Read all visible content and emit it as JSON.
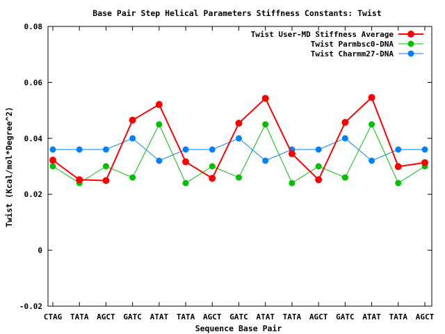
{
  "chart_data": {
    "type": "line",
    "title": "Base Pair Step Helical Parameters Stiffness Constants: Twist",
    "xlabel": "Sequence Base Pair",
    "ylabel": "Twist (Kcal/mol*Degree^2)",
    "categories": [
      "CTAG",
      "TATA",
      "AGCT",
      "GATC",
      "ATAT",
      "TATA",
      "AGCT",
      "GATC",
      "ATAT",
      "TATA",
      "AGCT",
      "GATC",
      "ATAT",
      "TATA",
      "AGCT"
    ],
    "ylim": [
      -0.02,
      0.08
    ],
    "yticks": [
      "-0.02",
      "0",
      "0.02",
      "0.04",
      "0.06",
      "0.08"
    ],
    "grid": false,
    "legend_position": "top-right",
    "series": [
      {
        "name": "Twist User-MD Stiffness Average",
        "color": "#ff0000",
        "values": [
          0.0322,
          0.0252,
          0.0249,
          0.0465,
          0.0521,
          0.0316,
          0.0257,
          0.0454,
          0.0543,
          0.0345,
          0.0252,
          0.0457,
          0.0546,
          0.0299,
          0.0313
        ]
      },
      {
        "name": "Twist Parmbsc0-DNA",
        "color": "#00c000",
        "values": [
          0.03,
          0.024,
          0.03,
          0.026,
          0.045,
          0.024,
          0.03,
          0.026,
          0.045,
          0.024,
          0.03,
          0.026,
          0.045,
          0.024,
          0.03
        ]
      },
      {
        "name": "Twist Charmm27-DNA",
        "color": "#0080ff",
        "values": [
          0.036,
          0.036,
          0.036,
          0.04,
          0.032,
          0.036,
          0.036,
          0.04,
          0.032,
          0.036,
          0.036,
          0.04,
          0.032,
          0.036,
          0.036
        ]
      }
    ]
  }
}
